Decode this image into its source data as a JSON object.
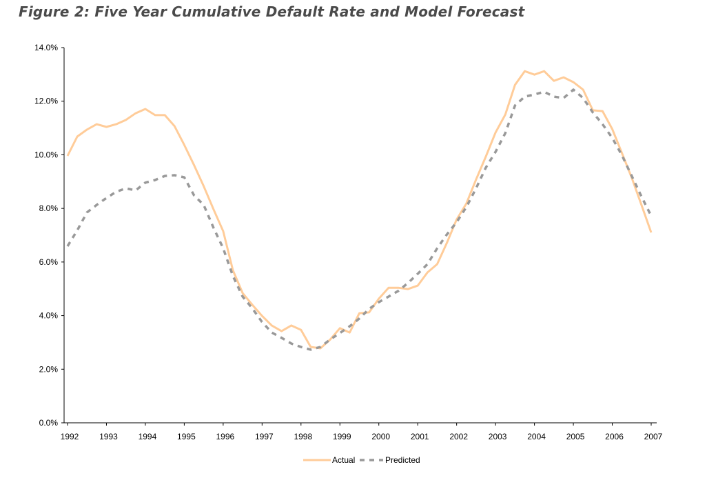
{
  "title": "Figure 2:  Five Year Cumulative Default Rate and Model Forecast",
  "chart_data": {
    "type": "line",
    "title": "Figure 2:  Five Year Cumulative Default Rate and Model Forecast",
    "xlabel": "",
    "ylabel": "",
    "xlim": [
      1992,
      2007
    ],
    "ylim": [
      0,
      14
    ],
    "x_ticks": [
      "1992",
      "1993",
      "1994",
      "1995",
      "1996",
      "1997",
      "1998",
      "1999",
      "2000",
      "2001",
      "2002",
      "2003",
      "2004",
      "2005",
      "2006",
      "2007"
    ],
    "y_ticks": [
      "0.0%",
      "2.0%",
      "4.0%",
      "6.0%",
      "8.0%",
      "10.0%",
      "12.0%",
      "14.0%"
    ],
    "grid": false,
    "legend_position": "bottom",
    "x": [
      1992,
      1992.25,
      1992.5,
      1992.75,
      1993,
      1993.25,
      1993.5,
      1993.75,
      1994,
      1994.25,
      1994.5,
      1994.75,
      1995,
      1995.25,
      1995.5,
      1995.75,
      1996,
      1996.25,
      1996.5,
      1996.75,
      1997,
      1997.25,
      1997.5,
      1997.75,
      1998,
      1998.25,
      1998.5,
      1998.75,
      1999,
      1999.25,
      1999.5,
      1999.75,
      2000,
      2000.25,
      2000.5,
      2000.75,
      2001,
      2001.25,
      2001.5,
      2001.75,
      2002,
      2002.25,
      2002.5,
      2002.75,
      2003,
      2003.25,
      2003.5,
      2003.75,
      2004,
      2004.25,
      2004.5,
      2004.75,
      2005,
      2005.25,
      2005.5,
      2005.75,
      2006,
      2006.25,
      2006.5,
      2006.75,
      2007
    ],
    "series": [
      {
        "name": "Actual",
        "color": "#FFCC99",
        "style": "solid",
        "values": [
          9.96,
          10.68,
          10.94,
          11.14,
          11.04,
          11.14,
          11.3,
          11.55,
          11.71,
          11.48,
          11.48,
          11.07,
          10.37,
          9.62,
          8.83,
          7.97,
          7.15,
          5.69,
          4.84,
          4.4,
          3.99,
          3.63,
          3.42,
          3.63,
          3.47,
          2.83,
          2.78,
          3.11,
          3.53,
          3.37,
          4.09,
          4.12,
          4.63,
          5.04,
          5.04,
          4.99,
          5.12,
          5.61,
          5.92,
          6.72,
          7.59,
          8.18,
          9.08,
          9.93,
          10.83,
          11.5,
          12.61,
          13.12,
          12.99,
          13.12,
          12.76,
          12.89,
          12.71,
          12.43,
          11.66,
          11.63,
          10.96,
          10.06,
          9.14,
          8.13,
          7.1
        ]
      },
      {
        "name": "Predicted",
        "color": "#999999",
        "style": "dashed",
        "values": [
          6.59,
          7.18,
          7.85,
          8.13,
          8.39,
          8.62,
          8.75,
          8.67,
          8.96,
          9.06,
          9.21,
          9.24,
          9.16,
          8.49,
          8.13,
          7.28,
          6.51,
          5.48,
          4.71,
          4.27,
          3.76,
          3.37,
          3.17,
          2.96,
          2.83,
          2.73,
          2.83,
          3.11,
          3.35,
          3.6,
          3.89,
          4.25,
          4.5,
          4.71,
          4.92,
          5.22,
          5.56,
          5.92,
          6.51,
          7.03,
          7.49,
          8.05,
          8.75,
          9.52,
          10.11,
          10.81,
          11.84,
          12.17,
          12.25,
          12.35,
          12.17,
          12.12,
          12.43,
          12.12,
          11.58,
          11.14,
          10.63,
          9.98,
          9.21,
          8.44,
          7.72
        ]
      }
    ]
  }
}
